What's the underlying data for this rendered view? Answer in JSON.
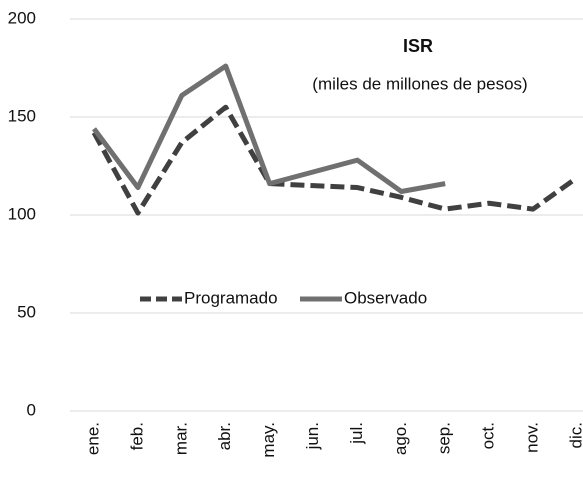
{
  "chart_data": {
    "type": "line",
    "title": "ISR",
    "subtitle": "(miles de millones de pesos)",
    "categories": [
      "ene.",
      "feb.",
      "mar.",
      "abr.",
      "may.",
      "jun.",
      "jul.",
      "ago.",
      "sep.",
      "oct.",
      "nov.",
      "dic."
    ],
    "series": [
      {
        "name": "Programado",
        "color": "#404040",
        "dashed": true,
        "values": [
          142,
          101,
          137,
          155,
          116,
          115,
          114,
          109,
          103,
          106,
          103,
          119
        ]
      },
      {
        "name": "Observado",
        "color": "#707070",
        "dashed": false,
        "values": [
          144,
          114,
          161,
          176,
          116,
          122,
          128,
          112,
          116,
          null,
          null,
          null
        ]
      }
    ],
    "ylim": [
      0,
      200
    ],
    "yticks": [
      0,
      50,
      100,
      150,
      200
    ],
    "grid": true
  }
}
